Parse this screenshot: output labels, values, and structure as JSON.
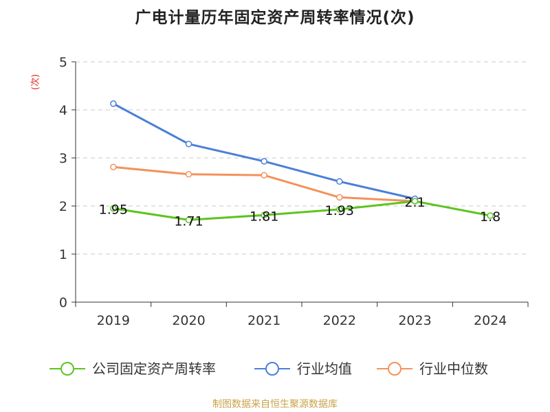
{
  "chart_data": {
    "type": "line",
    "title": "广电计量历年固定资产周转率情况(次)",
    "ylabel": "(次)",
    "xlabel": "",
    "categories": [
      "2019",
      "2020",
      "2021",
      "2022",
      "2023",
      "2024"
    ],
    "ylim": [
      0,
      5
    ],
    "yticks": [
      0,
      1,
      2,
      3,
      4,
      5
    ],
    "grid": true,
    "legend_position": "bottom",
    "series": [
      {
        "name": "公司固定资产周转率",
        "values": [
          1.95,
          1.71,
          1.81,
          1.93,
          2.1,
          1.8
        ],
        "color": "#5cc41f",
        "labels": [
          "1.95",
          "1.71",
          "1.81",
          "1.93",
          "2.1",
          "1.8"
        ]
      },
      {
        "name": "行业均值",
        "values": [
          4.13,
          3.29,
          2.93,
          2.51,
          2.15,
          null
        ],
        "color": "#4a7fd8"
      },
      {
        "name": "行业中位数",
        "values": [
          2.81,
          2.66,
          2.64,
          2.18,
          2.1,
          null
        ],
        "color": "#f4915a"
      }
    ]
  },
  "footer": {
    "source": "制图数据来自恒生聚源数据库"
  }
}
